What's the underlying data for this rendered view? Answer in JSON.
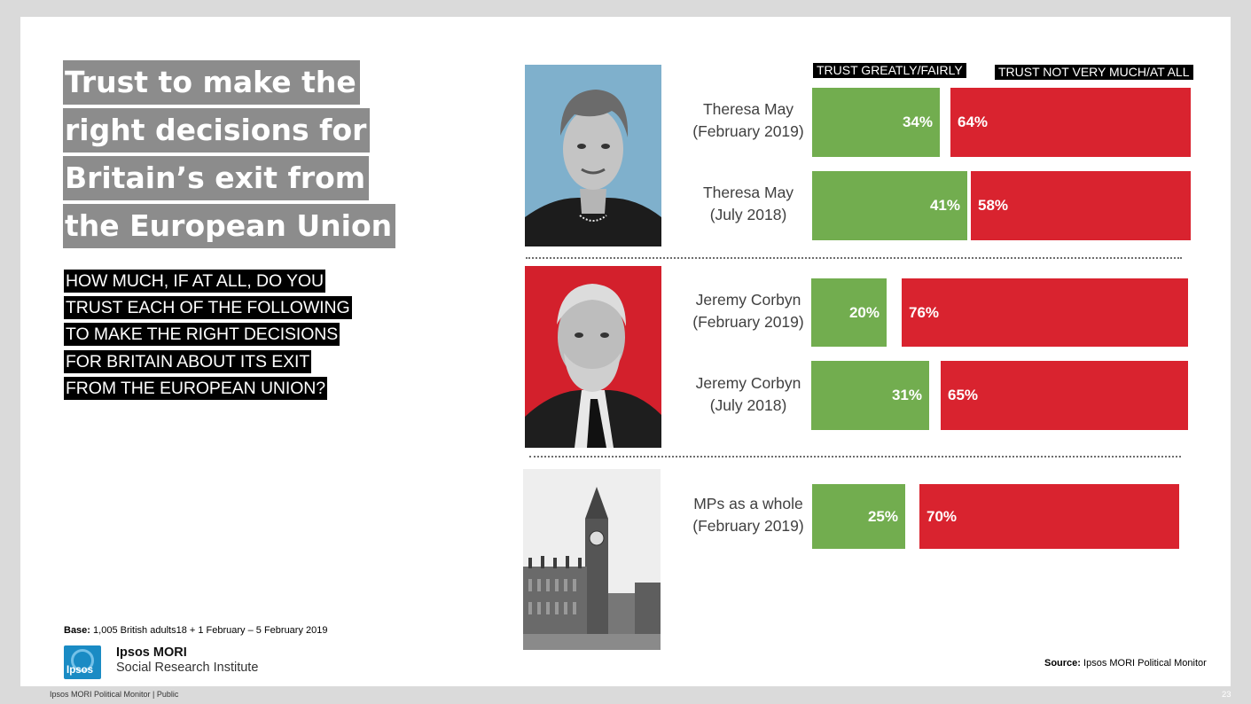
{
  "title": {
    "lines": [
      "Trust to make the",
      "right decisions for",
      "Britain’s exit from",
      "the European Union"
    ]
  },
  "question": {
    "lines": [
      "HOW MUCH, IF AT ALL, DO YOU",
      "TRUST EACH OF THE FOLLOWING",
      "TO MAKE THE RIGHT DECISIONS",
      "FOR BRITAIN ABOUT ITS EXIT",
      "FROM THE EUROPEAN UNION?"
    ]
  },
  "base": {
    "label": "Base:",
    "text": "1,005 British adults18 + 1 February – 5 February 2019"
  },
  "org": {
    "logo_text": "Ipsos",
    "name": "Ipsos MORI",
    "sub": "Social Research Institute"
  },
  "source": {
    "label": "Source:",
    "text": "Ipsos MORI Political Monitor"
  },
  "footer": {
    "left": "Ipsos MORI Political Monitor | Public",
    "page": "23"
  },
  "colors": {
    "trust": "#72ad4f",
    "distrust": "#d9232f",
    "title_bg": "#8c8c8c",
    "question_bg": "#000000"
  },
  "icons": [
    "theresa-may-photo",
    "jeremy-corbyn-photo",
    "parliament-photo",
    "ipsos-logo-icon"
  ],
  "chart_data": {
    "type": "bar",
    "orientation": "horizontal",
    "series": [
      {
        "name": "TRUST GREATLY/FAIRLY",
        "values": [
          34,
          41,
          20,
          31,
          25
        ]
      },
      {
        "name": "TRUST NOT VERY MUCH/AT ALL",
        "values": [
          64,
          58,
          76,
          65,
          70
        ]
      }
    ],
    "categories": [
      {
        "name": "Theresa May",
        "period": "(February 2019)"
      },
      {
        "name": "Theresa May",
        "period": "(July 2018)"
      },
      {
        "name": "Jeremy Corbyn",
        "period": "(February 2019)"
      },
      {
        "name": "Jeremy Corbyn",
        "period": "(July 2018)"
      },
      {
        "name": "MPs as a whole",
        "period": "(February 2019)"
      }
    ],
    "value_suffix": "%",
    "xlim": [
      0,
      100
    ]
  }
}
